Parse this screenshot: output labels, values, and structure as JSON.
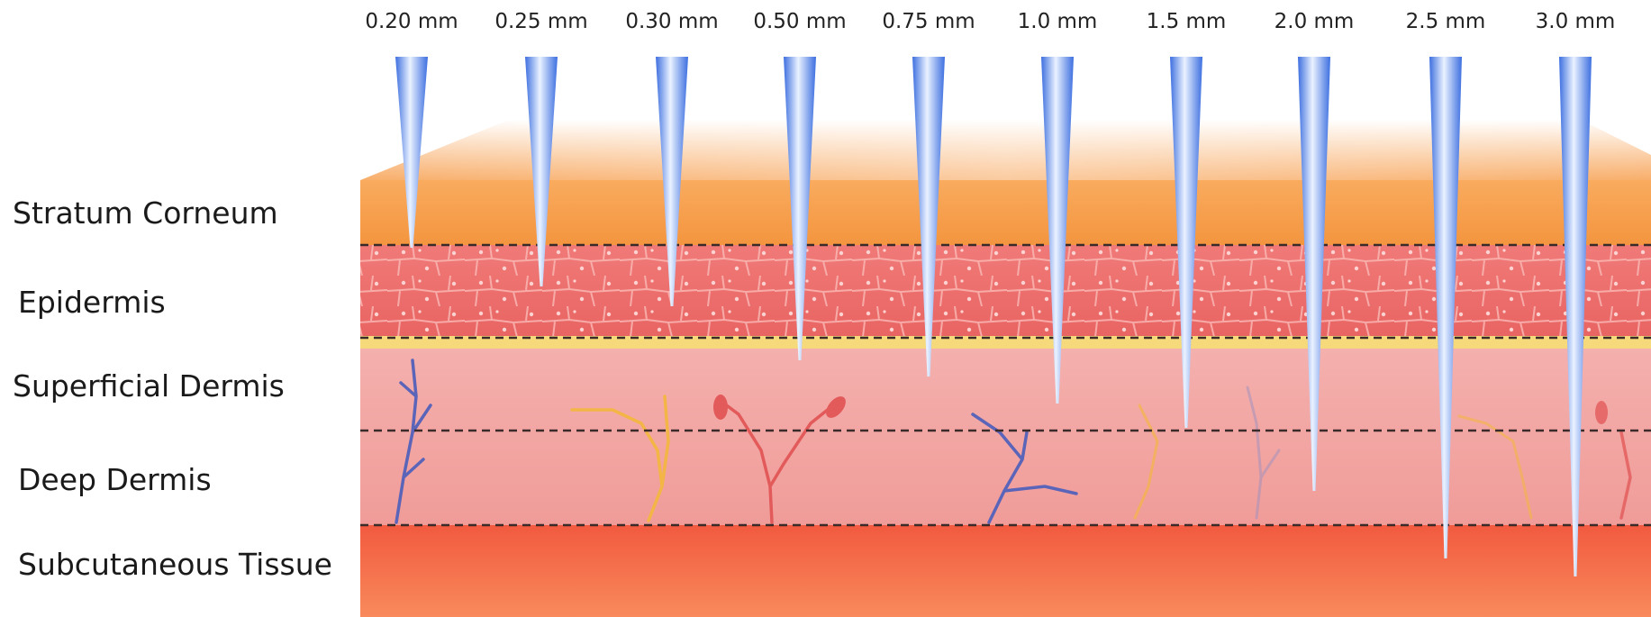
{
  "layers": [
    {
      "name": "Stratum Corneum"
    },
    {
      "name": "Epidermis"
    },
    {
      "name": "Superficial Dermis"
    },
    {
      "name": "Deep Dermis"
    },
    {
      "name": "Subcutaneous Tissue"
    }
  ],
  "needles": [
    {
      "label": "0.20 mm",
      "depth_mm": 0.2
    },
    {
      "label": "0.25 mm",
      "depth_mm": 0.25
    },
    {
      "label": "0.30 mm",
      "depth_mm": 0.3
    },
    {
      "label": "0.50 mm",
      "depth_mm": 0.5
    },
    {
      "label": "0.75 mm",
      "depth_mm": 0.75
    },
    {
      "label": "1.0 mm",
      "depth_mm": 1.0
    },
    {
      "label": "1.5 mm",
      "depth_mm": 1.5
    },
    {
      "label": "2.0 mm",
      "depth_mm": 2.0
    },
    {
      "label": "2.5 mm",
      "depth_mm": 2.5
    },
    {
      "label": "3.0 mm",
      "depth_mm": 3.0
    }
  ],
  "colors": {
    "stratum_corneum": "#f7a050",
    "epidermis": "#ec6e6e",
    "basement_line": "#f5d97a",
    "dermis": "#f2a8a4",
    "subcutaneous": "#f56a4e",
    "needle_light": "#eaf2ff",
    "needle_dark": "#3d6fe0",
    "divider": "#3a2a2a",
    "vein": "#5a64b8",
    "artery": "#e25a5a",
    "nerve": "#f3b545"
  }
}
